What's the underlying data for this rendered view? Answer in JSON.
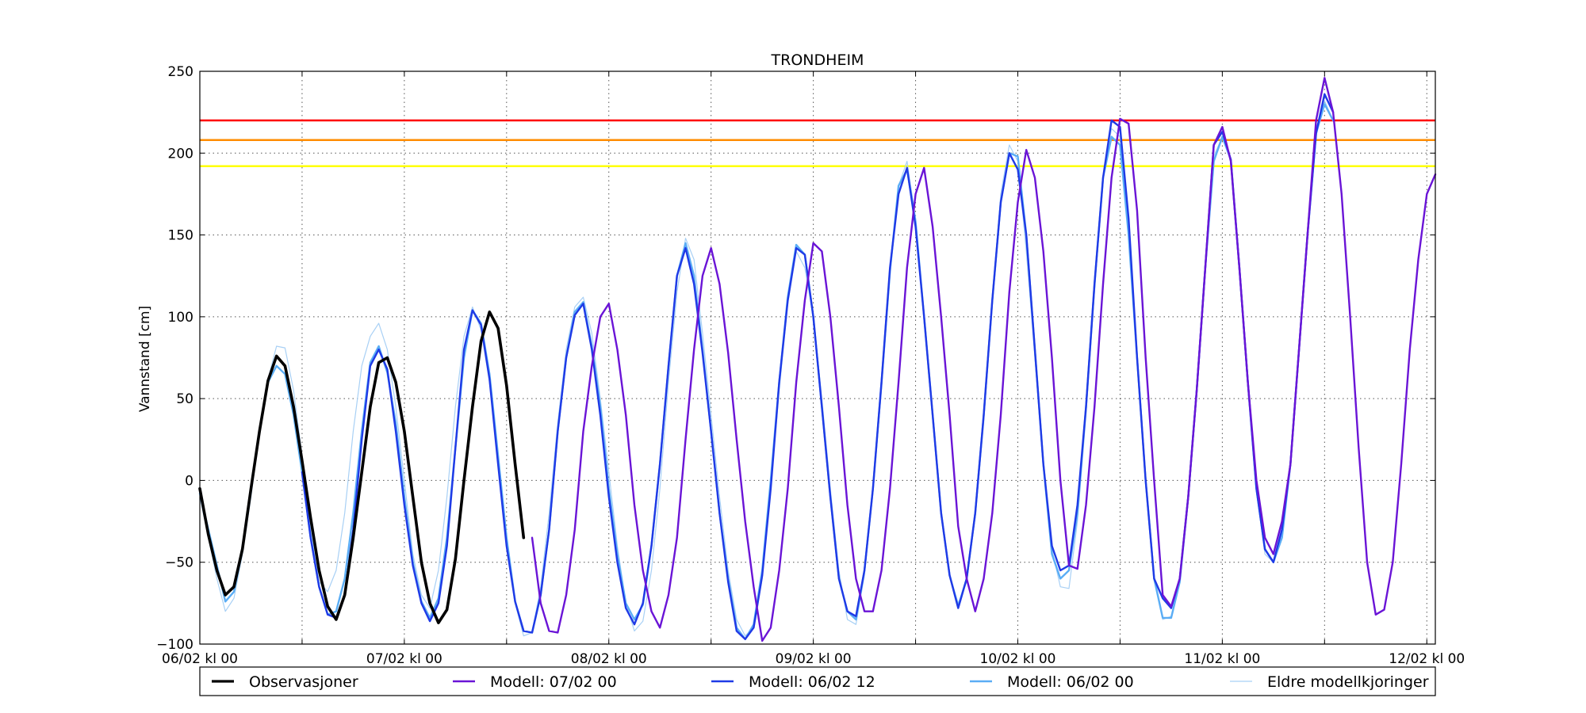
{
  "chart_data": {
    "type": "line",
    "title": "TRONDHEIM",
    "ylabel": "Vannstand [cm]",
    "xlabel": "",
    "ylim": [
      -100,
      250
    ],
    "xlim_hours": [
      0,
      145
    ],
    "yticks": [
      -100,
      -50,
      0,
      50,
      100,
      150,
      200,
      250
    ],
    "ytick_labels": [
      "−100",
      "−50",
      "0",
      "50",
      "100",
      "150",
      "200",
      "250"
    ],
    "xticks": [
      {
        "h": 0,
        "label": "06/02 kl 00"
      },
      {
        "h": 24,
        "label": "07/02 kl 00"
      },
      {
        "h": 48,
        "label": "08/02 kl 00"
      },
      {
        "h": 72,
        "label": "09/02 kl 00"
      },
      {
        "h": 96,
        "label": "10/02 kl 00"
      },
      {
        "h": 120,
        "label": "11/02 kl 00"
      },
      {
        "h": 144,
        "label": "12/02 kl 00"
      }
    ],
    "grid": true,
    "thresholds": [
      {
        "value": 220,
        "color": "#ff0000"
      },
      {
        "value": 208,
        "color": "#ff8c00"
      },
      {
        "value": 192,
        "color": "#ffff00"
      }
    ],
    "legend_position": "bottom",
    "series": [
      {
        "name": "Eldre modellkjoringer",
        "color": "#a8d0f5",
        "style": "thin",
        "x": [
          0,
          2,
          3,
          4,
          5,
          6,
          7,
          8,
          9,
          10,
          11,
          12,
          13,
          14,
          15,
          16,
          17,
          18,
          19,
          20,
          21,
          22,
          23,
          24,
          25,
          26,
          27,
          28,
          29,
          30,
          31,
          32,
          33,
          34,
          35,
          36,
          37,
          38,
          39,
          40,
          41,
          42,
          43,
          44,
          45,
          46,
          47,
          48,
          49,
          50,
          51,
          52,
          53,
          54,
          55,
          56,
          57,
          58,
          59,
          60,
          61,
          62,
          63,
          64,
          65,
          66,
          67,
          68,
          69,
          70,
          71,
          72,
          73,
          74,
          75,
          76,
          77,
          78,
          79,
          80,
          81,
          82,
          83,
          84,
          85,
          86,
          87,
          88,
          89,
          90,
          91,
          92,
          93,
          94,
          95,
          96,
          97,
          98,
          99,
          100,
          101,
          102,
          103,
          104,
          105,
          106,
          107,
          108,
          109,
          110,
          111,
          112,
          113,
          114,
          115,
          116,
          117,
          118,
          119,
          120,
          121,
          122,
          123,
          124,
          125,
          126,
          127,
          128,
          129,
          130,
          131,
          132,
          133
        ],
        "y": [
          -10,
          -60,
          -80,
          -72,
          -45,
          -10,
          30,
          62,
          82,
          81,
          55,
          15,
          -30,
          -62,
          -68,
          -55,
          -20,
          30,
          70,
          88,
          96,
          80,
          45,
          0,
          -45,
          -70,
          -78,
          -55,
          -10,
          45,
          88,
          106,
          92,
          60,
          15,
          -35,
          -75,
          -95,
          -93,
          -65,
          -20,
          35,
          80,
          106,
          112,
          90,
          50,
          5,
          -40,
          -75,
          -92,
          -86,
          -55,
          -5,
          60,
          115,
          148,
          135,
          90,
          40,
          -10,
          -55,
          -85,
          -95,
          -90,
          -60,
          -5,
          55,
          108,
          140,
          130,
          100,
          50,
          -5,
          -55,
          -85,
          -88,
          -58,
          -5,
          55,
          125,
          180,
          195,
          160,
          100,
          40,
          -20,
          -58,
          -75,
          -62,
          -22,
          35,
          110,
          175,
          205,
          195,
          140,
          75,
          10,
          -42,
          -65,
          -66,
          -25,
          40,
          115,
          185,
          215,
          210,
          150,
          75,
          0,
          -60,
          -85,
          -83,
          -60,
          -10,
          55,
          130,
          198,
          210,
          195,
          130,
          60,
          -5,
          -45,
          -50,
          -35,
          10,
          80,
          150,
          215,
          232,
          220
        ]
      },
      {
        "name": "Modell: 06/02 00",
        "color": "#5aadf5",
        "style": "medium",
        "x": [
          0,
          2,
          3,
          4,
          5,
          6,
          7,
          8,
          9,
          10,
          11,
          12,
          13,
          14,
          15,
          16,
          17,
          18,
          19,
          20,
          21,
          22,
          23,
          24,
          25,
          26,
          27,
          28,
          29,
          30,
          31,
          32,
          33,
          34,
          35,
          36,
          37,
          38,
          39,
          40,
          41,
          42,
          43,
          44,
          45,
          46,
          47,
          48,
          49,
          50,
          51,
          52,
          53,
          54,
          55,
          56,
          57,
          58,
          59,
          60,
          61,
          62,
          63,
          64,
          65,
          66,
          67,
          68,
          69,
          70,
          71,
          72,
          73,
          74,
          75,
          76,
          77,
          78,
          79,
          80,
          81,
          82,
          83,
          84,
          85,
          86,
          87,
          88,
          89,
          90,
          91,
          92,
          93,
          94,
          95,
          96,
          97,
          98,
          99,
          100,
          101,
          102,
          103,
          104,
          105,
          106,
          107,
          108,
          109,
          110,
          111,
          112,
          113,
          114,
          115,
          116,
          117,
          118,
          119,
          120,
          121,
          122,
          123,
          124,
          125,
          126,
          127,
          128,
          129,
          130,
          131,
          132,
          133
        ],
        "y": [
          -8,
          -52,
          -74,
          -68,
          -42,
          -5,
          30,
          60,
          70,
          65,
          40,
          5,
          -35,
          -65,
          -82,
          -80,
          -60,
          -20,
          30,
          72,
          82,
          66,
          35,
          -10,
          -50,
          -74,
          -84,
          -72,
          -35,
          20,
          75,
          104,
          96,
          65,
          15,
          -35,
          -74,
          -92,
          -93,
          -70,
          -30,
          30,
          75,
          103,
          109,
          82,
          45,
          -5,
          -45,
          -75,
          -85,
          -76,
          -40,
          10,
          70,
          125,
          145,
          125,
          80,
          30,
          -20,
          -60,
          -90,
          -97,
          -88,
          -55,
          0,
          60,
          112,
          144,
          138,
          100,
          45,
          -10,
          -60,
          -80,
          -85,
          -55,
          -5,
          60,
          128,
          180,
          190,
          158,
          100,
          40,
          -20,
          -58,
          -77,
          -60,
          -20,
          40,
          110,
          170,
          200,
          198,
          150,
          80,
          10,
          -45,
          -60,
          -55,
          -20,
          45,
          120,
          185,
          210,
          205,
          150,
          75,
          0,
          -60,
          -84,
          -84,
          -62,
          -10,
          55,
          130,
          195,
          210,
          196,
          130,
          60,
          -5,
          -42,
          -50,
          -35,
          10,
          80,
          150,
          212,
          230,
          220
        ]
      },
      {
        "name": "Modell: 06/02 12",
        "color": "#1f3ae6",
        "style": "medium",
        "x": [
          12,
          13,
          14,
          15,
          16,
          17,
          18,
          19,
          20,
          21,
          22,
          23,
          24,
          25,
          26,
          27,
          28,
          29,
          30,
          31,
          32,
          33,
          34,
          35,
          36,
          37,
          38,
          39,
          40,
          41,
          42,
          43,
          44,
          45,
          46,
          47,
          48,
          49,
          50,
          51,
          52,
          53,
          54,
          55,
          56,
          57,
          58,
          59,
          60,
          61,
          62,
          63,
          64,
          65,
          66,
          67,
          68,
          69,
          70,
          71,
          72,
          73,
          74,
          75,
          76,
          77,
          78,
          79,
          80,
          81,
          82,
          83,
          84,
          85,
          86,
          87,
          88,
          89,
          90,
          91,
          92,
          93,
          94,
          95,
          96,
          97,
          98,
          99,
          100,
          101,
          102,
          103,
          104,
          105,
          106,
          107,
          108,
          109,
          110,
          111,
          112,
          113,
          114,
          115,
          116,
          117,
          118,
          119,
          120,
          121,
          122,
          123,
          124,
          125,
          126,
          127,
          128,
          129,
          130,
          131,
          132,
          133
        ],
        "y": [
          5,
          -35,
          -65,
          -82,
          -84,
          -70,
          -30,
          25,
          70,
          80,
          68,
          30,
          -15,
          -52,
          -75,
          -86,
          -75,
          -40,
          20,
          80,
          104,
          95,
          62,
          10,
          -40,
          -74,
          -92,
          -93,
          -70,
          -30,
          30,
          75,
          101,
          108,
          80,
          40,
          -10,
          -50,
          -78,
          -88,
          -75,
          -40,
          10,
          70,
          125,
          142,
          120,
          78,
          30,
          -20,
          -62,
          -92,
          -97,
          -90,
          -58,
          -5,
          60,
          110,
          142,
          138,
          100,
          45,
          -10,
          -60,
          -80,
          -83,
          -55,
          -5,
          60,
          130,
          175,
          191,
          155,
          100,
          40,
          -20,
          -58,
          -78,
          -60,
          -20,
          40,
          110,
          170,
          200,
          190,
          150,
          80,
          10,
          -40,
          -55,
          -52,
          -15,
          45,
          120,
          185,
          220,
          216,
          160,
          75,
          0,
          -60,
          -72,
          -78,
          -60,
          -10,
          55,
          130,
          205,
          213,
          196,
          130,
          60,
          -5,
          -42,
          -50,
          -30,
          10,
          80,
          150,
          212,
          236,
          225
        ]
      },
      {
        "name": "Modell: 07/02 00",
        "color": "#6a14d6",
        "style": "medium",
        "x": [
          39,
          40,
          41,
          42,
          43,
          44,
          45,
          46,
          47,
          48,
          49,
          50,
          51,
          52,
          53,
          54,
          55,
          56,
          57,
          58,
          59,
          60,
          61,
          62,
          63,
          64,
          65,
          66,
          67,
          68,
          69,
          70,
          71,
          72,
          73,
          74,
          75,
          76,
          77,
          78,
          79,
          80,
          81,
          82,
          83,
          84,
          85,
          86,
          87,
          88,
          89,
          90,
          91,
          92,
          93,
          94,
          95,
          96,
          97,
          98,
          99,
          100,
          101,
          102,
          103,
          104,
          105,
          106,
          107,
          108,
          109,
          110,
          111,
          112,
          113,
          114,
          115,
          116,
          117,
          118,
          119,
          120,
          121,
          122,
          123,
          124,
          125,
          126,
          127,
          128,
          129,
          130,
          131,
          132,
          133,
          134,
          135,
          136,
          137,
          138,
          139,
          140,
          141,
          142,
          143,
          144,
          145
        ],
        "y": [
          -35,
          -75,
          -92,
          -93,
          -70,
          -30,
          30,
          70,
          100,
          108,
          80,
          40,
          -15,
          -55,
          -80,
          -90,
          -70,
          -35,
          25,
          80,
          125,
          142,
          120,
          78,
          25,
          -25,
          -65,
          -98,
          -90,
          -55,
          -5,
          60,
          110,
          145,
          140,
          100,
          45,
          -15,
          -60,
          -80,
          -80,
          -55,
          -5,
          60,
          130,
          175,
          191,
          155,
          100,
          40,
          -28,
          -60,
          -80,
          -60,
          -20,
          40,
          115,
          170,
          202,
          185,
          140,
          75,
          0,
          -52,
          -54,
          -15,
          45,
          120,
          185,
          221,
          218,
          165,
          75,
          0,
          -70,
          -77,
          -60,
          -10,
          55,
          130,
          205,
          216,
          195,
          130,
          60,
          0,
          -35,
          -45,
          -25,
          10,
          80,
          150,
          220,
          246,
          225,
          175,
          100,
          20,
          -50,
          -82,
          -79,
          -50,
          10,
          80,
          135,
          175,
          187
        ]
      },
      {
        "name": "Observasjoner",
        "color": "#000000",
        "style": "thick",
        "x": [
          0,
          1,
          2,
          3,
          4,
          5,
          6,
          7,
          8,
          9,
          10,
          11,
          12,
          13,
          14,
          15,
          16,
          17,
          18,
          19,
          20,
          21,
          22,
          23,
          24,
          25,
          26,
          27,
          28,
          29,
          30,
          31,
          32,
          33,
          34,
          35,
          36,
          37,
          38
        ],
        "y": [
          -5,
          -33,
          -55,
          -70,
          -65,
          -42,
          -5,
          30,
          61,
          76,
          70,
          45,
          12,
          -23,
          -55,
          -77,
          -85,
          -70,
          -35,
          5,
          45,
          72,
          75,
          60,
          30,
          -10,
          -50,
          -75,
          -87,
          -79,
          -48,
          0,
          45,
          85,
          103,
          93,
          58,
          10,
          -35
        ]
      }
    ],
    "legend": [
      {
        "label": "Observasjoner",
        "color": "#000000"
      },
      {
        "label": "Modell: 07/02 00",
        "color": "#6a14d6"
      },
      {
        "label": "Modell: 06/02 12",
        "color": "#1f3ae6"
      },
      {
        "label": "Modell: 06/02 00",
        "color": "#5aadf5"
      },
      {
        "label": "Eldre modellkjoringer",
        "color": "#a8d0f5"
      }
    ]
  }
}
